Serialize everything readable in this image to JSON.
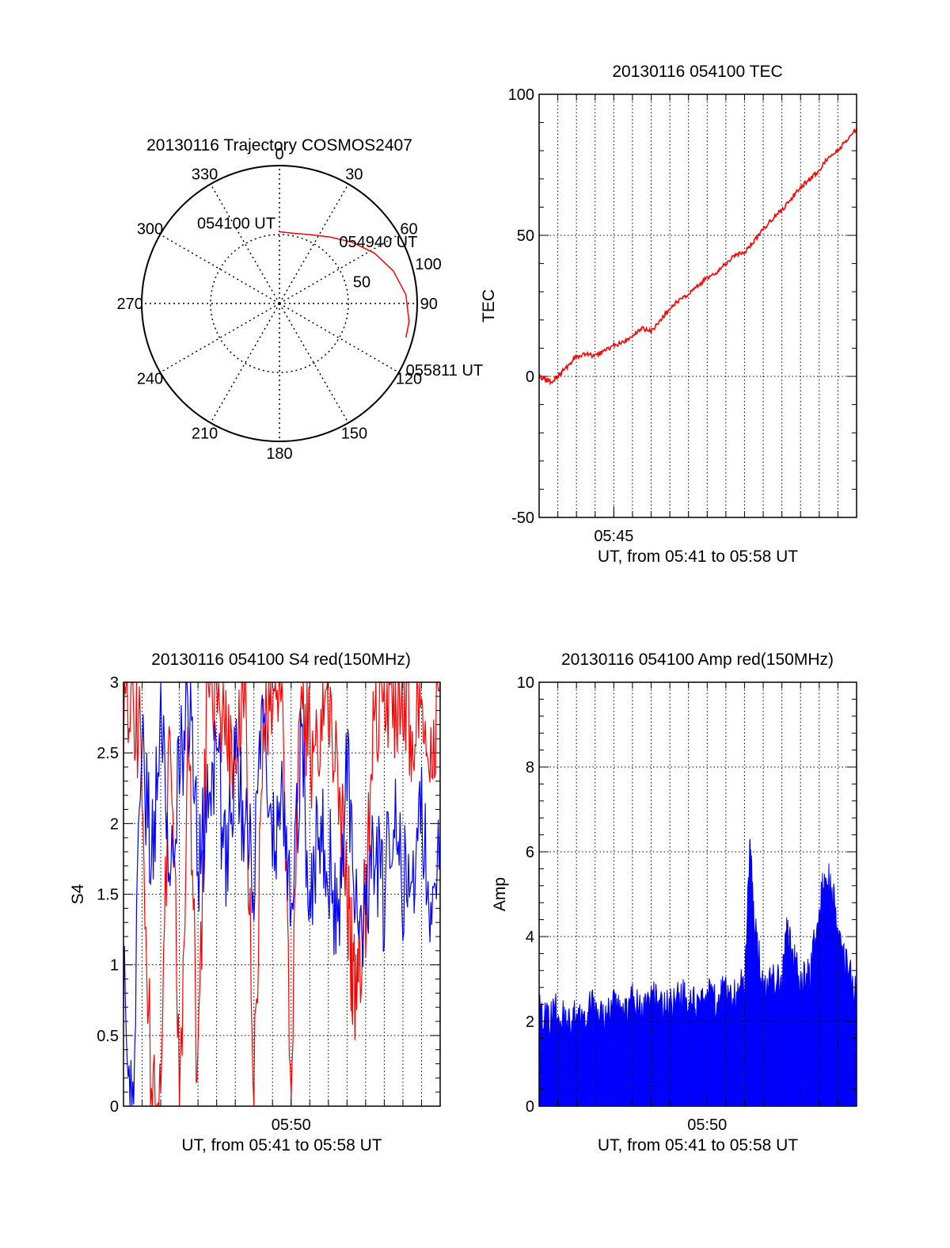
{
  "colors": {
    "red": "#ff0000",
    "blue": "#0000ff",
    "axis": "#000000",
    "grid": "#000000"
  },
  "chart_data": [
    {
      "id": "trajectory",
      "type": "polar",
      "title": "20130116 Trajectory COSMOS2407",
      "angular_ticks": [
        "0",
        "30",
        "60",
        "90",
        "120",
        "150",
        "180",
        "210",
        "240",
        "270",
        "300",
        "330"
      ],
      "angular_tick_values": [
        0,
        30,
        60,
        90,
        120,
        150,
        180,
        210,
        240,
        270,
        300,
        330
      ],
      "radial_ticks": [
        {
          "label": "50",
          "value": 50
        },
        {
          "label": "100",
          "value": 100
        }
      ],
      "r_max": 100,
      "grid": true,
      "series": [
        {
          "color": "red",
          "points": [
            {
              "az": 0,
              "r": 52
            },
            {
              "az": 12,
              "r": 52
            },
            {
              "az": 25,
              "r": 55
            },
            {
              "az": 38,
              "r": 61
            },
            {
              "az": 50,
              "r": 69
            },
            {
              "az": 62,
              "r": 78
            },
            {
              "az": 74,
              "r": 86
            },
            {
              "az": 86,
              "r": 92
            },
            {
              "az": 98,
              "r": 95
            },
            {
              "az": 105,
              "r": 95
            }
          ]
        }
      ],
      "annotations": [
        {
          "text": "054100 UT",
          "az": 0,
          "r": 52
        },
        {
          "text": "054940 UT",
          "az": 44,
          "r": 64
        },
        {
          "text": "055811 UT",
          "az": 105,
          "r": 95
        }
      ]
    },
    {
      "id": "tec",
      "type": "line",
      "title": "20130116 054100 TEC",
      "xlabel": "UT, from 05:41 to 05:58 UT",
      "ylabel": "TEC",
      "x_unit": "minutes UT",
      "xlim": [
        41.0,
        58.0
      ],
      "ylim": [
        -50,
        100
      ],
      "yticks": [
        -50,
        0,
        50,
        100
      ],
      "xticks": [
        {
          "label": "05:45",
          "value": 45.0
        }
      ],
      "grid": true,
      "series": [
        {
          "color": "red",
          "x": [
            41.0,
            41.3,
            41.6,
            42.0,
            42.3,
            42.7,
            43.0,
            43.5,
            44.0,
            44.5,
            45.0,
            45.5,
            46.0,
            46.5,
            47.0,
            47.5,
            48.0,
            48.5,
            49.0,
            49.5,
            50.0,
            50.5,
            51.0,
            51.5,
            52.0,
            52.5,
            53.0,
            53.5,
            54.0,
            54.5,
            55.0,
            55.5,
            56.0,
            56.5,
            57.0,
            57.5,
            58.0
          ],
          "y": [
            0,
            -1,
            -2,
            0,
            2,
            5,
            7,
            8,
            7,
            9,
            11,
            12,
            14,
            17,
            16,
            20,
            24,
            27,
            29,
            32,
            35,
            37,
            40,
            43,
            44,
            48,
            52,
            56,
            59,
            63,
            67,
            70,
            73,
            78,
            80,
            84,
            88
          ]
        }
      ]
    },
    {
      "id": "s4",
      "type": "line",
      "title": "20130116 054100 S4 red(150MHz)",
      "xlabel": "UT, from 05:41 to 05:58 UT",
      "ylabel": "S4",
      "x_unit": "minutes UT",
      "xlim": [
        41.0,
        58.0
      ],
      "ylim": [
        0,
        3
      ],
      "yticks": [
        0,
        0.5,
        1,
        1.5,
        2,
        2.5,
        3
      ],
      "ytick_labels": [
        "0",
        "0.5",
        "1",
        "1.5",
        "2",
        "2.5",
        "3"
      ],
      "xticks": [
        {
          "label": "05:50",
          "value": 50.0
        }
      ],
      "grid": true,
      "series": [
        {
          "color": "red",
          "note": "noisy trace mostly between 1.5 and 3 (clipped at 3), deep drops to 0 near 05:42–05:46, 05:48 and 05:50, dip to ~0.8 near 05:53",
          "x": [
            41.0,
            41.5,
            42.0,
            42.5,
            43.0,
            43.5,
            44.0,
            44.5,
            45.0,
            45.5,
            46.0,
            46.5,
            47.0,
            47.5,
            48.0,
            48.5,
            49.0,
            49.5,
            50.0,
            50.5,
            51.0,
            51.5,
            52.0,
            52.5,
            53.0,
            53.3,
            53.6,
            54.0,
            54.5,
            55.0,
            55.5,
            56.0,
            56.5,
            57.0,
            57.5,
            58.0
          ],
          "y": [
            2.9,
            3.0,
            2.4,
            0.0,
            0.0,
            3.0,
            0.0,
            2.6,
            0.0,
            3.0,
            3.0,
            2.7,
            2.2,
            3.0,
            0.0,
            2.8,
            3.0,
            2.9,
            0.0,
            3.0,
            2.5,
            2.7,
            3.0,
            2.2,
            1.6,
            0.9,
            0.8,
            1.5,
            2.8,
            3.0,
            2.9,
            3.0,
            2.6,
            3.0,
            2.4,
            3.0
          ]
        },
        {
          "color": "blue",
          "note": "noisy trace mostly between 1.2 and 3, with occasional drops to 0 near 05:41",
          "x": [
            41.0,
            41.5,
            42.0,
            42.5,
            43.0,
            43.5,
            44.0,
            44.5,
            45.0,
            45.5,
            46.0,
            46.5,
            47.0,
            47.5,
            48.0,
            48.5,
            49.0,
            49.5,
            50.0,
            50.5,
            51.0,
            51.5,
            52.0,
            52.5,
            53.0,
            53.5,
            54.0,
            54.5,
            55.0,
            55.5,
            56.0,
            56.5,
            57.0,
            57.5,
            58.0
          ],
          "y": [
            1.0,
            0.0,
            2.6,
            1.8,
            2.7,
            1.5,
            2.3,
            2.9,
            1.7,
            2.1,
            2.6,
            1.6,
            2.4,
            2.0,
            1.5,
            2.8,
            1.9,
            2.2,
            1.4,
            2.5,
            1.6,
            2.0,
            1.8,
            1.3,
            2.3,
            1.6,
            1.3,
            1.9,
            1.5,
            2.2,
            1.5,
            1.7,
            2.1,
            1.4,
            1.9
          ]
        }
      ]
    },
    {
      "id": "amp",
      "type": "area",
      "title": "20130116 054100 Amp red(150MHz)",
      "xlabel": "UT, from 05:41 to 05:58 UT",
      "ylabel": "Amp",
      "x_unit": "minutes UT",
      "xlim": [
        41.0,
        58.0
      ],
      "ylim": [
        0,
        10
      ],
      "yticks": [
        0,
        2,
        4,
        6,
        8,
        10
      ],
      "xticks": [
        {
          "label": "05:50",
          "value": 50.0
        }
      ],
      "grid": true,
      "series": [
        {
          "color": "blue",
          "note": "dense filled signal from 0 up to an envelope of about 1.5–2.5, spikes near 05:52 (~6) and 05:56 (~5.5)",
          "x": [
            41.0,
            41.5,
            42.0,
            42.5,
            43.0,
            43.5,
            44.0,
            44.5,
            45.0,
            45.5,
            46.0,
            46.5,
            47.0,
            47.5,
            48.0,
            48.5,
            49.0,
            49.5,
            50.0,
            50.5,
            51.0,
            51.5,
            52.0,
            52.3,
            52.5,
            53.0,
            53.5,
            54.0,
            54.3,
            54.6,
            55.0,
            55.5,
            56.0,
            56.3,
            56.6,
            57.0,
            57.5,
            58.0
          ],
          "y": [
            2.2,
            2.0,
            2.3,
            1.9,
            2.1,
            2.2,
            2.4,
            2.0,
            2.3,
            2.1,
            2.5,
            2.2,
            2.6,
            2.3,
            2.4,
            2.6,
            2.5,
            2.3,
            2.7,
            2.4,
            2.8,
            2.6,
            3.0,
            6.1,
            4.5,
            2.7,
            2.9,
            3.0,
            4.2,
            3.5,
            2.9,
            3.1,
            4.6,
            5.5,
            5.2,
            4.3,
            3.2,
            2.7
          ]
        }
      ]
    }
  ]
}
